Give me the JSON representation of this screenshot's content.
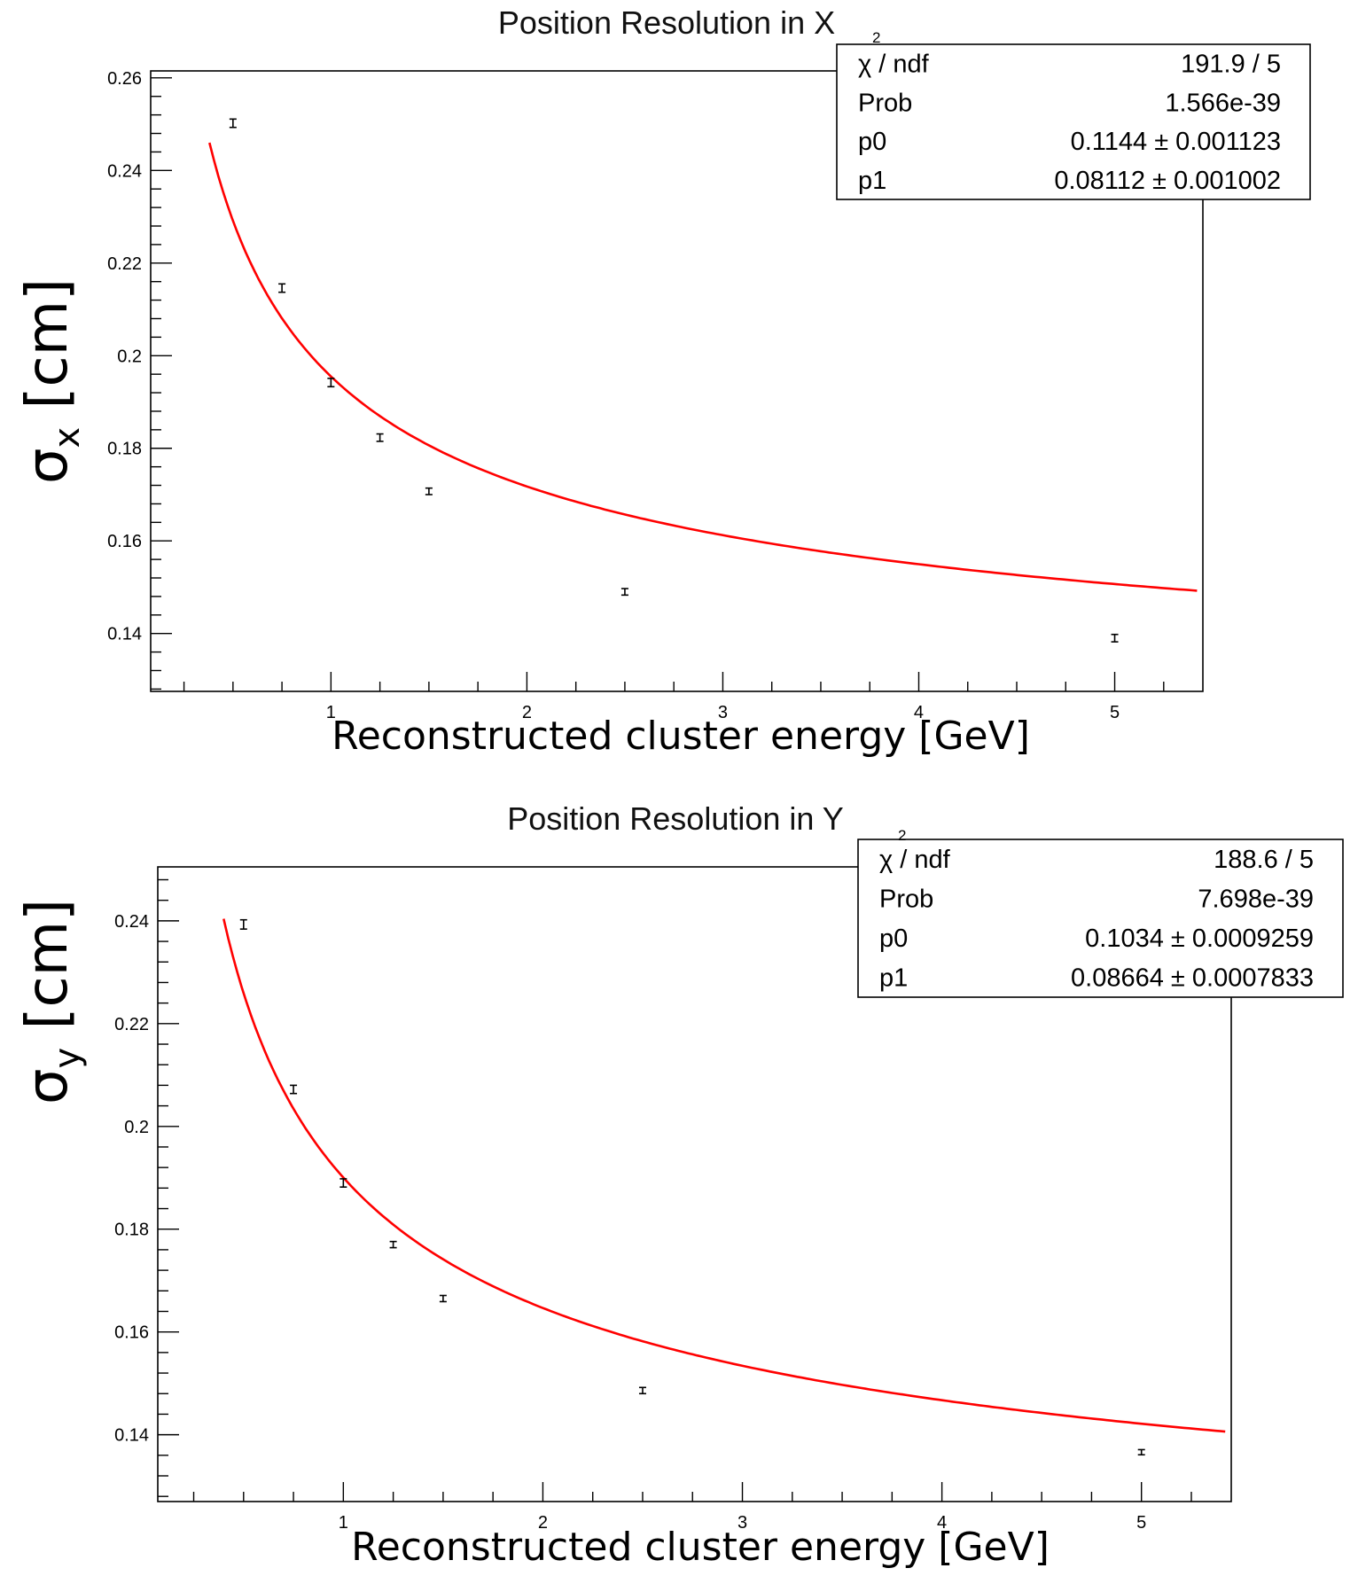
{
  "chart_data": [
    {
      "type": "scatter",
      "title": "Position Resolution in X",
      "xlabel": "Reconstructed cluster energy [GeV]",
      "ylabel_symbol": "σ",
      "ylabel_subscript": "x",
      "ylabel_unit": "[cm]",
      "xlim": [
        0.08,
        5.45
      ],
      "ylim": [
        0.1275,
        0.2615
      ],
      "x_ticks": [
        1,
        2,
        3,
        4,
        5
      ],
      "y_ticks": [
        0.14,
        0.16,
        0.18,
        0.2,
        0.22,
        0.24,
        0.26
      ],
      "y_tick_labels": [
        "0.14",
        "0.16",
        "0.18",
        "0.2",
        "0.22",
        "0.24",
        "0.26"
      ],
      "grid": false,
      "points": {
        "x": [
          0.5,
          0.75,
          1.0,
          1.25,
          1.5,
          2.5,
          5.0
        ],
        "y": [
          0.2502,
          0.2146,
          0.1942,
          0.1823,
          0.1707,
          0.149,
          0.139
        ],
        "err": [
          0.0009,
          0.0009,
          0.0009,
          0.0008,
          0.0007,
          0.0007,
          0.0008
        ]
      },
      "fit": {
        "function": "p0 + p1/sqrt(x)",
        "p0": 0.1144,
        "p1": 0.08112,
        "x_range": [
          0.38,
          5.42
        ],
        "color": "#ff0000"
      },
      "stats": [
        {
          "label": "χ",
          "sup": "2",
          "label_rest": " / ndf",
          "value": "191.9 / 5"
        },
        {
          "label": "Prob",
          "value": "1.566e-39"
        },
        {
          "label": "p0",
          "value": "0.1144 ±  0.001123"
        },
        {
          "label": "p1",
          "value": "0.08112 ±  0.001002"
        }
      ],
      "legend_position": "top-right"
    },
    {
      "type": "scatter",
      "title": "Position Resolution in Y",
      "xlabel": "Reconstructed cluster energy [GeV]",
      "ylabel_symbol": "σ",
      "ylabel_subscript": "y",
      "ylabel_unit": "[cm]",
      "xlim": [
        0.07,
        5.45
      ],
      "ylim": [
        0.127,
        0.2505
      ],
      "x_ticks": [
        1,
        2,
        3,
        4,
        5
      ],
      "y_ticks": [
        0.14,
        0.16,
        0.18,
        0.2,
        0.22,
        0.24
      ],
      "y_tick_labels": [
        "0.14",
        "0.16",
        "0.18",
        "0.2",
        "0.22",
        "0.24"
      ],
      "grid": false,
      "points": {
        "x": [
          0.5,
          0.75,
          1.0,
          1.25,
          1.5,
          2.5,
          5.0
        ],
        "y": [
          0.2393,
          0.2072,
          0.189,
          0.177,
          0.1665,
          0.1486,
          0.1366
        ],
        "err": [
          0.0009,
          0.0008,
          0.0008,
          0.0006,
          0.0006,
          0.0006,
          0.0005
        ]
      },
      "fit": {
        "function": "p0 + p1/sqrt(x)",
        "p0": 0.1034,
        "p1": 0.08664,
        "x_range": [
          0.4,
          5.42
        ],
        "color": "#ff0000"
      },
      "stats": [
        {
          "label": "χ",
          "sup": "2",
          "label_rest": " / ndf",
          "value": "188.6 / 5"
        },
        {
          "label": "Prob",
          "value": "7.698e-39"
        },
        {
          "label": "p0",
          "value": "0.1034 ±  0.0009259"
        },
        {
          "label": "p1",
          "value": "0.08664 ±  0.0007833"
        }
      ],
      "legend_position": "top-right"
    }
  ]
}
